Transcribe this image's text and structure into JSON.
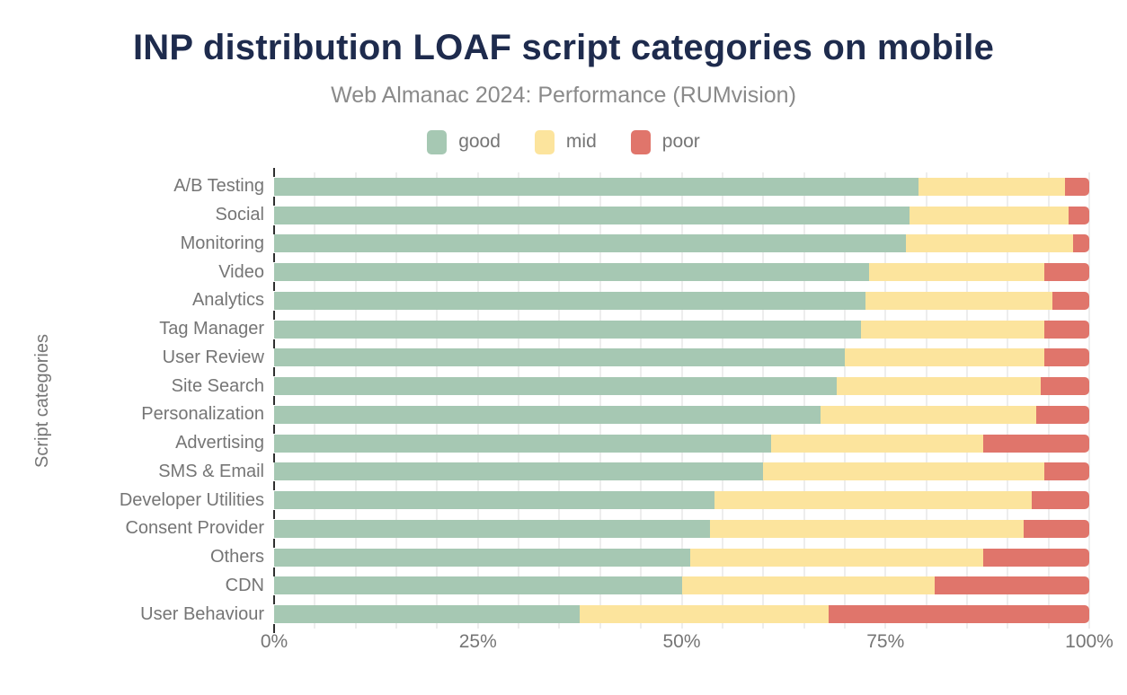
{
  "header": {
    "title": "INP distribution LOAF script categories on mobile",
    "subtitle": "Web Almanac 2024: Performance (RUMvision)"
  },
  "legend": [
    {
      "label": "good",
      "color": "#a6c8b3"
    },
    {
      "label": "mid",
      "color": "#fce49d"
    },
    {
      "label": "poor",
      "color": "#e0756b"
    }
  ],
  "chart_data": {
    "type": "bar",
    "orientation": "horizontal",
    "stacked": true,
    "title": "INP distribution LOAF script categories on mobile",
    "subtitle": "Web Almanac 2024: Performance (RUMvision)",
    "xlabel": "",
    "ylabel": "Script categories",
    "xlim": [
      0,
      100
    ],
    "x_ticks": [
      "0%",
      "25%",
      "50%",
      "75%",
      "100%"
    ],
    "x_tick_positions": [
      0,
      25,
      50,
      75,
      100
    ],
    "grid_step_percent": 5,
    "grid": true,
    "legend_position": "top",
    "categories": [
      "A/B Testing",
      "Social",
      "Monitoring",
      "Video",
      "Analytics",
      "Tag Manager",
      "User Review",
      "Site Search",
      "Personalization",
      "Advertising",
      "SMS & Email",
      "Developer Utilities",
      "Consent Provider",
      "Others",
      "CDN",
      "User Behaviour"
    ],
    "series": [
      {
        "name": "good",
        "color": "#a6c8b3",
        "values": [
          79,
          78,
          77.5,
          73,
          72.5,
          72,
          70,
          69,
          67,
          61,
          60,
          54,
          53.5,
          51,
          50,
          37.5
        ]
      },
      {
        "name": "mid",
        "color": "#fce49d",
        "values": [
          18,
          19.5,
          20.5,
          21.5,
          23,
          22.5,
          24.5,
          25,
          26.5,
          26,
          34.5,
          39,
          38.5,
          36,
          31,
          30.5
        ]
      },
      {
        "name": "poor",
        "color": "#e0756b",
        "values": [
          3,
          2.5,
          2,
          5.5,
          4.5,
          5.5,
          5.5,
          6,
          6.5,
          13,
          5.5,
          7,
          8,
          13,
          19,
          32
        ]
      }
    ]
  },
  "colors": {
    "title": "#1e2b4d",
    "subtitle": "#8a8a8a",
    "axis_text": "#757575",
    "grid": "#ededed",
    "tick": "#2f2f2f",
    "background": "#ffffff"
  }
}
